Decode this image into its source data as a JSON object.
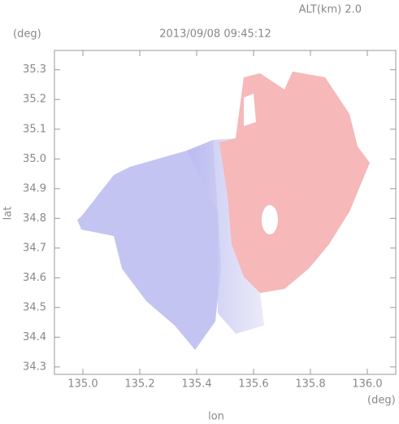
{
  "chart_data": {
    "type": "radar-map",
    "title": "2013/09/08 09:45:12",
    "subtitle": "ALT(km) 2.0",
    "x_label": "lon",
    "y_label": "lat",
    "x_unit": "(deg)",
    "y_unit": "(deg)",
    "xlim": [
      134.9,
      136.1
    ],
    "ylim": [
      34.275,
      35.365
    ],
    "xticks": [
      {
        "value": 135,
        "label": "135.0"
      },
      135.2,
      135.4,
      135.6,
      135.8,
      {
        "value": 136,
        "label": "136.0"
      }
    ],
    "yticks": [
      34.3,
      34.4,
      34.5,
      34.6,
      34.7,
      34.8,
      34.9,
      {
        "value": 35,
        "label": "35.0"
      },
      35.1,
      35.2,
      35.3
    ]
  }
}
